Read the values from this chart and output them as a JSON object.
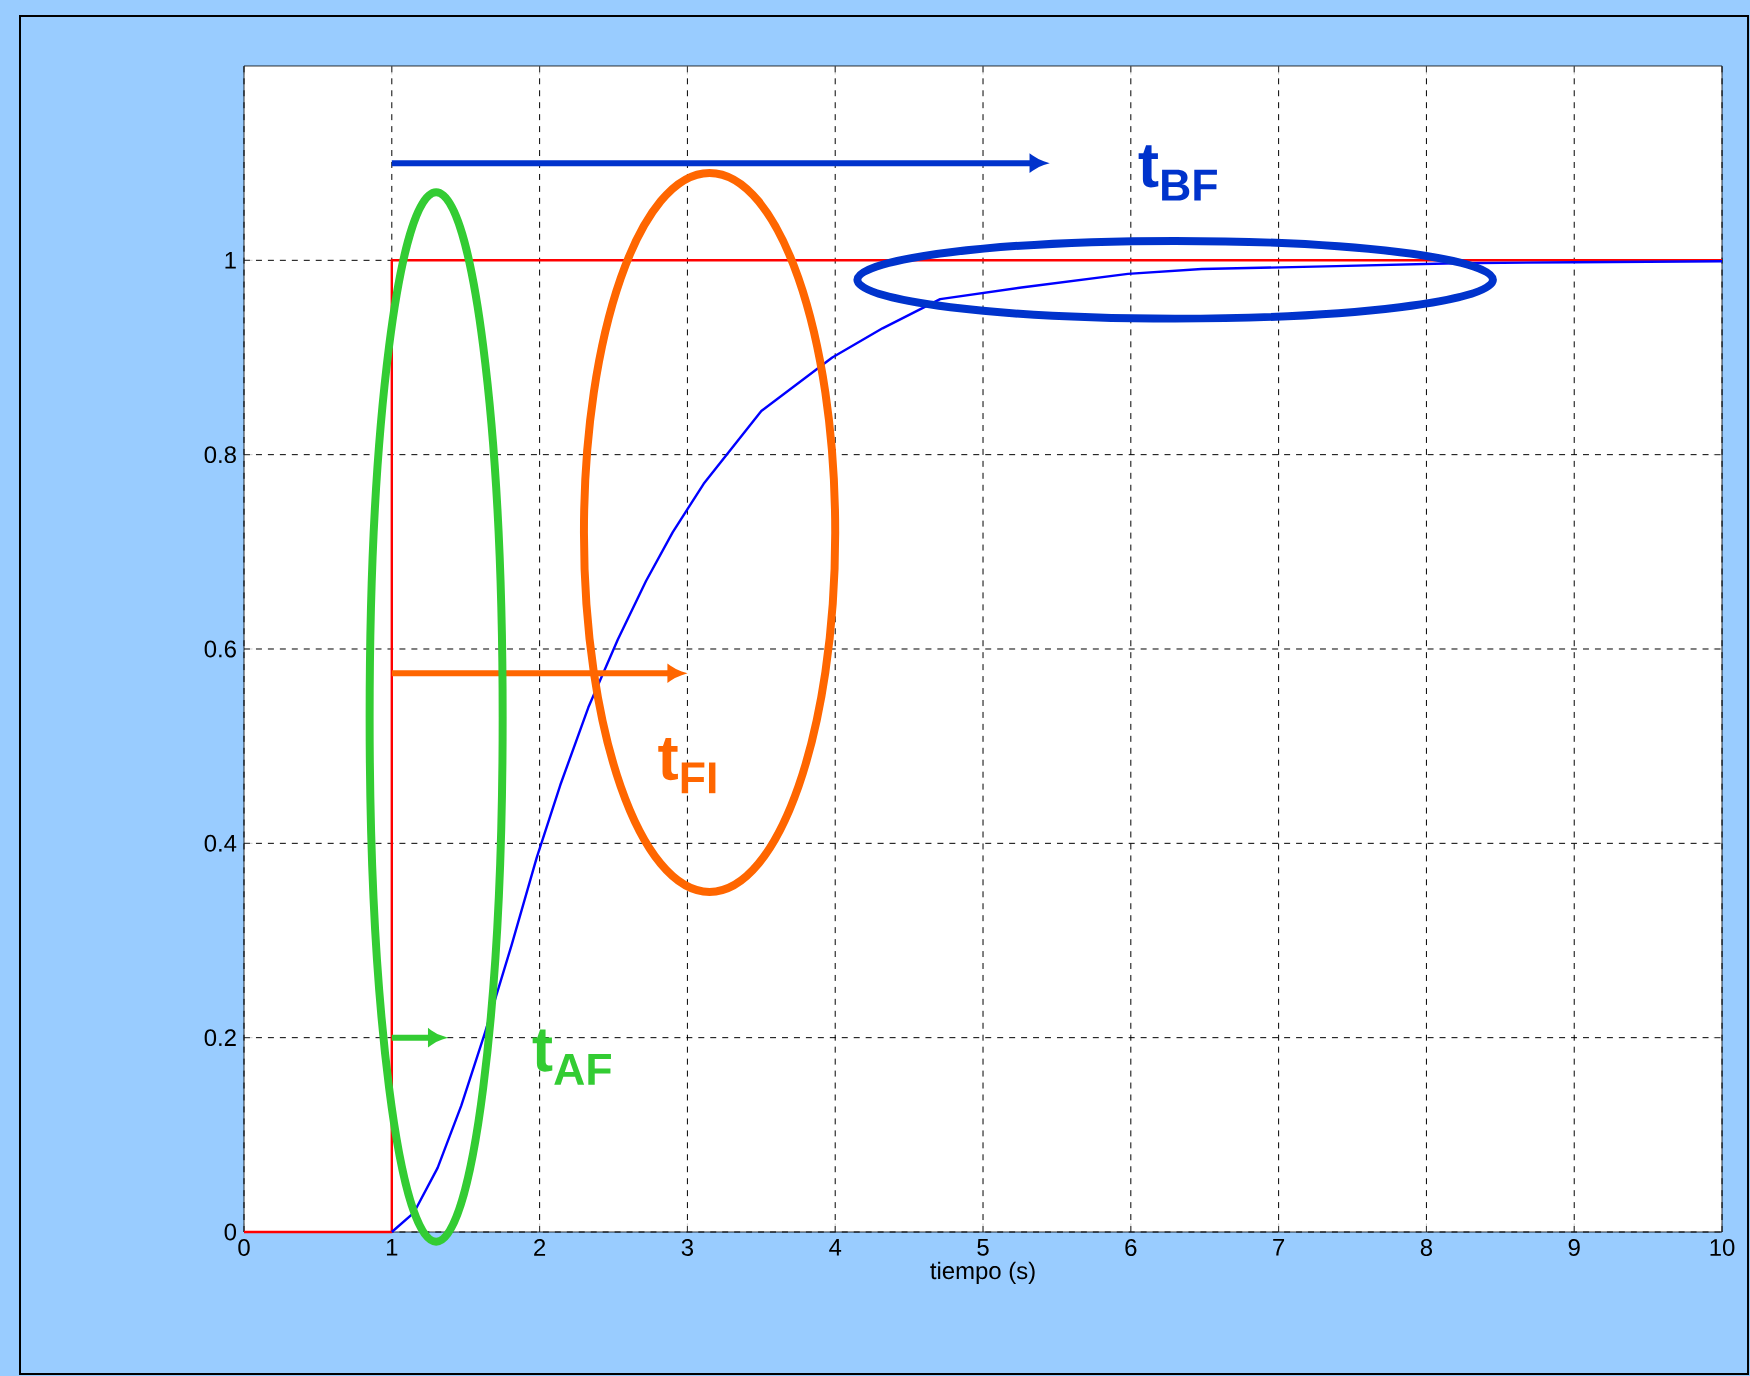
{
  "chart_data": {
    "type": "line",
    "xlabel": "tiempo (s)",
    "xlim": [
      0,
      10
    ],
    "ylim": [
      0,
      1.2
    ],
    "xticks": [
      0,
      1,
      2,
      3,
      4,
      5,
      6,
      7,
      8,
      9,
      10
    ],
    "yticks": [
      0,
      0.2,
      0.4,
      0.6,
      0.8,
      1
    ],
    "grid": true,
    "series": [
      {
        "color": "#ff0000",
        "x": [
          0,
          1,
          1,
          10
        ],
        "values": [
          0,
          0,
          1,
          1
        ]
      },
      {
        "color": "#0000ff",
        "x": [
          1,
          1.15,
          1.31,
          1.47,
          1.63,
          1.81,
          1.98,
          2.14,
          2.33,
          2.53,
          2.72,
          2.9,
          3.11,
          3.5,
          3.98,
          4.32,
          4.71,
          5.26,
          5.98,
          6.48,
          7.39,
          8.2,
          9,
          10
        ],
        "values": [
          0,
          0.02,
          0.066,
          0.13,
          0.205,
          0.295,
          0.385,
          0.46,
          0.54,
          0.61,
          0.67,
          0.72,
          0.77,
          0.845,
          0.9,
          0.93,
          0.96,
          0.972,
          0.986,
          0.991,
          0.994,
          0.997,
          0.998,
          0.999
        ]
      }
    ],
    "annotations": [
      "t$_{BF}$",
      "t$_{FI}$",
      "t$_{AF}$"
    ]
  }
}
